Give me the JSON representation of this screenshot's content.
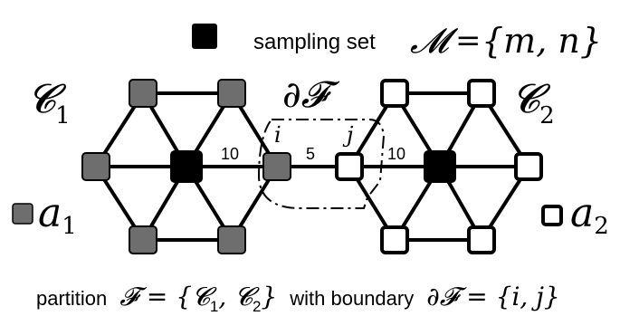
{
  "header": {
    "text": "sampling set",
    "symbol": "𝓜",
    "equals": "=",
    "set": "{m, n}"
  },
  "clusters": {
    "c1": {
      "main": "𝓒",
      "sub": "1"
    },
    "c2": {
      "main": "𝓒",
      "sub": "2"
    }
  },
  "boundary": {
    "label": "∂𝓕"
  },
  "nodes": {
    "i": "i",
    "j": "j"
  },
  "edge_weights": {
    "left": "10",
    "middle": "5",
    "right": "10"
  },
  "legend": {
    "a1": {
      "main": "a",
      "sub": "1"
    },
    "a2": {
      "main": "a",
      "sub": "2"
    }
  },
  "footer": {
    "partition_text": "partition",
    "partition_math": "𝓕 = {𝓒",
    "sub1": "1",
    "comma": ", 𝓒",
    "sub2": "2",
    "close": "}",
    "with_text": "with boundary",
    "boundary_math": "∂𝓕 = {i, j}"
  },
  "colors": {
    "cluster1_fill": "#6e6e6e",
    "sample_fill": "#000000",
    "cluster2_fill": "#ffffff",
    "stroke": "#000000"
  }
}
